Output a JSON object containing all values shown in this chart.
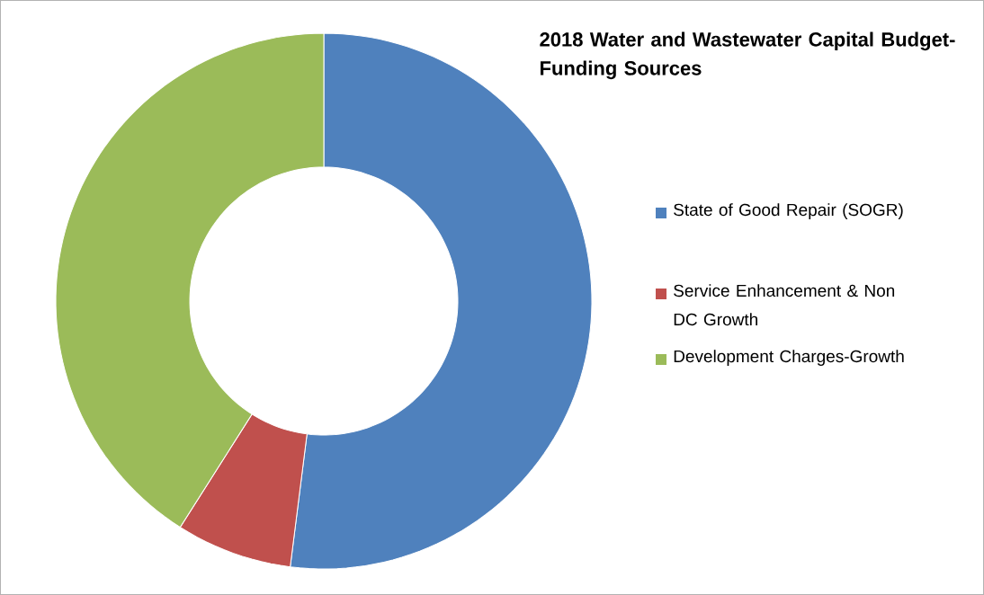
{
  "chart_data": {
    "type": "donut",
    "title": "2018  Water and Wastewater Capital Budget-Funding Sources",
    "categories": [
      "State of Good Repair (SOGR)",
      "Service Enhancement & Non DC Growth",
      "Development Charges-Growth"
    ],
    "values": [
      52,
      7,
      41
    ],
    "colors": [
      "#4f81bd",
      "#c0504d",
      "#9bbb59"
    ],
    "legend": "right"
  }
}
